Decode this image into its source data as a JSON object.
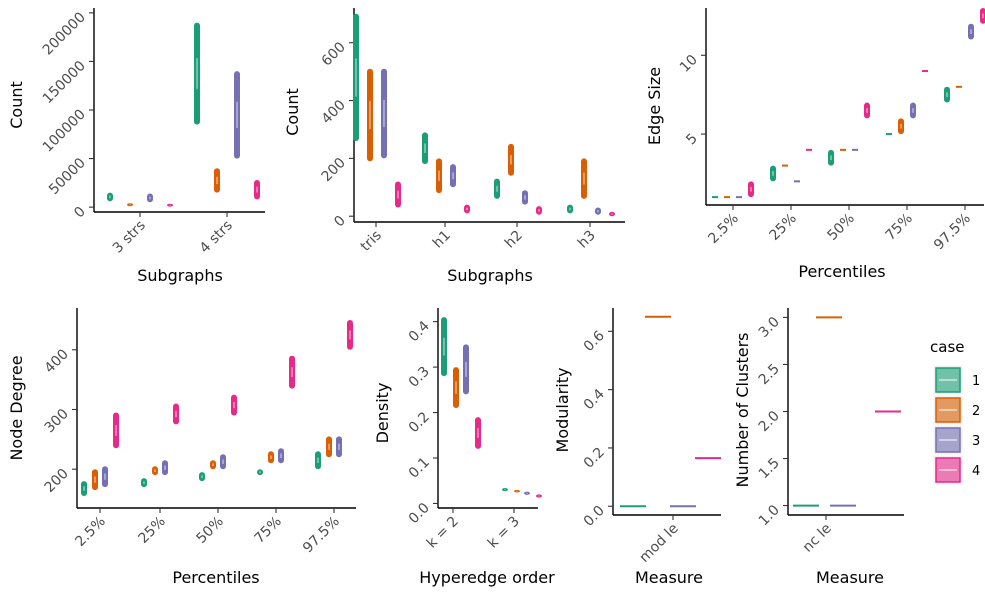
{
  "colors": {
    "1": "#1b9e77",
    "2": "#d95f02",
    "3": "#7570b3",
    "4": "#e7298a"
  },
  "legend": {
    "title": "case",
    "labels": [
      "1",
      "2",
      "3",
      "4"
    ]
  },
  "chart_data": [
    {
      "id": "subgraph_counts_3_4",
      "type": "violin",
      "xlabel": "Subgraphs",
      "ylabel": "Count",
      "categories": [
        "3 strs",
        "4 strs"
      ],
      "yticks": [
        0,
        50000,
        100000,
        150000,
        200000
      ],
      "yticklabels": [
        "0",
        "50000",
        "100000",
        "150000",
        "200000"
      ],
      "ylim": [
        -5000,
        205000
      ],
      "series": [
        {
          "case": "1",
          "ranges": [
            [
              6000,
              15000
            ],
            [
              85000,
              190000
            ]
          ]
        },
        {
          "case": "2",
          "ranges": [
            [
              1000,
              4000
            ],
            [
              15000,
              40000
            ]
          ]
        },
        {
          "case": "3",
          "ranges": [
            [
              5000,
              14000
            ],
            [
              50000,
              140000
            ]
          ]
        },
        {
          "case": "4",
          "ranges": [
            [
              500,
              3500
            ],
            [
              8000,
              28000
            ]
          ]
        }
      ]
    },
    {
      "id": "subgraph_counts_tris_h",
      "type": "violin",
      "xlabel": "Subgraphs",
      "ylabel": "Count",
      "categories": [
        "tris",
        "h1",
        "h2",
        "h3"
      ],
      "yticks": [
        0,
        200,
        400,
        600
      ],
      "yticklabels": [
        "0",
        "200",
        "400",
        "600"
      ],
      "ylim": [
        -20,
        720
      ],
      "series": [
        {
          "case": "1",
          "ranges": [
            [
              260,
              700
            ],
            [
              180,
              290
            ],
            [
              60,
              130
            ],
            [
              10,
              40
            ]
          ]
        },
        {
          "case": "2",
          "ranges": [
            [
              190,
              510
            ],
            [
              80,
              200
            ],
            [
              140,
              250
            ],
            [
              60,
              200
            ]
          ]
        },
        {
          "case": "3",
          "ranges": [
            [
              200,
              510
            ],
            [
              100,
              180
            ],
            [
              40,
              90
            ],
            [
              5,
              30
            ]
          ]
        },
        {
          "case": "4",
          "ranges": [
            [
              30,
              120
            ],
            [
              10,
              40
            ],
            [
              5,
              35
            ],
            [
              0,
              15
            ]
          ]
        }
      ]
    },
    {
      "id": "edge_size_percentiles",
      "type": "violin",
      "xlabel": "Percentiles",
      "ylabel": "Edge Size",
      "categories": [
        "2.5%",
        "25%",
        "50%",
        "75%",
        "97.5%"
      ],
      "yticks": [
        5,
        10
      ],
      "yticklabels": [
        "5",
        "10"
      ],
      "ylim": [
        0.5,
        13
      ],
      "series": [
        {
          "case": "1",
          "ranges": [
            [
              1,
              1
            ],
            [
              2,
              3
            ],
            [
              3,
              4
            ],
            [
              5,
              5
            ],
            [
              7,
              8
            ]
          ]
        },
        {
          "case": "2",
          "ranges": [
            [
              1,
              1
            ],
            [
              3,
              3
            ],
            [
              4,
              4
            ],
            [
              5,
              6
            ],
            [
              8,
              8
            ]
          ]
        },
        {
          "case": "3",
          "ranges": [
            [
              1,
              1
            ],
            [
              2,
              2
            ],
            [
              4,
              4
            ],
            [
              6,
              7
            ],
            [
              11,
              12
            ]
          ]
        },
        {
          "case": "4",
          "ranges": [
            [
              1,
              2
            ],
            [
              4,
              4
            ],
            [
              6,
              7
            ],
            [
              9,
              9
            ],
            [
              12,
              13
            ]
          ]
        }
      ]
    },
    {
      "id": "node_degree_percentiles",
      "type": "violin",
      "xlabel": "Percentiles",
      "ylabel": "Node Degree",
      "categories": [
        "2.5%",
        "25%",
        "50%",
        "75%",
        "97.5%"
      ],
      "yticks": [
        200,
        300,
        400
      ],
      "yticklabels": [
        "200",
        "300",
        "400"
      ],
      "ylim": [
        135,
        470
      ],
      "series": [
        {
          "case": "1",
          "ranges": [
            [
              155,
              180
            ],
            [
              170,
              185
            ],
            [
              180,
              195
            ],
            [
              190,
              200
            ],
            [
              200,
              230
            ]
          ]
        },
        {
          "case": "2",
          "ranges": [
            [
              165,
              200
            ],
            [
              190,
              205
            ],
            [
              200,
              215
            ],
            [
              210,
              230
            ],
            [
              220,
              255
            ]
          ]
        },
        {
          "case": "3",
          "ranges": [
            [
              170,
              205
            ],
            [
              190,
              215
            ],
            [
              200,
              225
            ],
            [
              210,
              235
            ],
            [
              220,
              255
            ]
          ]
        },
        {
          "case": "4",
          "ranges": [
            [
              235,
              295
            ],
            [
              275,
              310
            ],
            [
              290,
              325
            ],
            [
              335,
              390
            ],
            [
              400,
              450
            ]
          ]
        }
      ]
    },
    {
      "id": "density_hyperedge_order",
      "type": "violin",
      "xlabel": "Hyperedge order",
      "ylabel": "Density",
      "categories": [
        "k = 2",
        "k = 3"
      ],
      "yticks": [
        0.0,
        0.1,
        0.2,
        0.3,
        0.4
      ],
      "yticklabels": [
        "0.0",
        "0.1",
        "0.2",
        "0.3",
        "0.4"
      ],
      "ylim": [
        -0.01,
        0.43
      ],
      "series": [
        {
          "case": "1",
          "ranges": [
            [
              0.28,
              0.41
            ],
            [
              0.027,
              0.034
            ]
          ]
        },
        {
          "case": "2",
          "ranges": [
            [
              0.21,
              0.3
            ],
            [
              0.024,
              0.03
            ]
          ]
        },
        {
          "case": "3",
          "ranges": [
            [
              0.24,
              0.35
            ],
            [
              0.019,
              0.026
            ]
          ]
        },
        {
          "case": "4",
          "ranges": [
            [
              0.12,
              0.19
            ],
            [
              0.013,
              0.02
            ]
          ]
        }
      ]
    },
    {
      "id": "modularity",
      "type": "violin",
      "xlabel": "Measure",
      "ylabel": "Modularity",
      "categories": [
        "mod le"
      ],
      "yticks": [
        0.0,
        0.2,
        0.4,
        0.6
      ],
      "yticklabels": [
        "0.0",
        "0.2",
        "0.4",
        "0.6"
      ],
      "ylim": [
        -0.03,
        0.68
      ],
      "series": [
        {
          "case": "1",
          "ranges": [
            [
              0.0,
              0.0
            ]
          ]
        },
        {
          "case": "2",
          "ranges": [
            [
              0.65,
              0.65
            ]
          ]
        },
        {
          "case": "3",
          "ranges": [
            [
              0.0,
              0.0
            ]
          ]
        },
        {
          "case": "4",
          "ranges": [
            [
              0.165,
              0.165
            ]
          ]
        }
      ]
    },
    {
      "id": "number_of_clusters",
      "type": "violin",
      "xlabel": "Measure",
      "ylabel": "Number of Clusters",
      "categories": [
        "nc le"
      ],
      "yticks": [
        1.0,
        1.5,
        2.0,
        2.5,
        3.0
      ],
      "yticklabels": [
        "1.0",
        "1.5",
        "2.0",
        "2.5",
        "3.0"
      ],
      "ylim": [
        0.9,
        3.1
      ],
      "series": [
        {
          "case": "1",
          "ranges": [
            [
              1.0,
              1.0
            ]
          ]
        },
        {
          "case": "2",
          "ranges": [
            [
              3.0,
              3.0
            ]
          ]
        },
        {
          "case": "3",
          "ranges": [
            [
              1.0,
              1.0
            ]
          ]
        },
        {
          "case": "4",
          "ranges": [
            [
              2.0,
              2.0
            ]
          ]
        }
      ]
    }
  ]
}
